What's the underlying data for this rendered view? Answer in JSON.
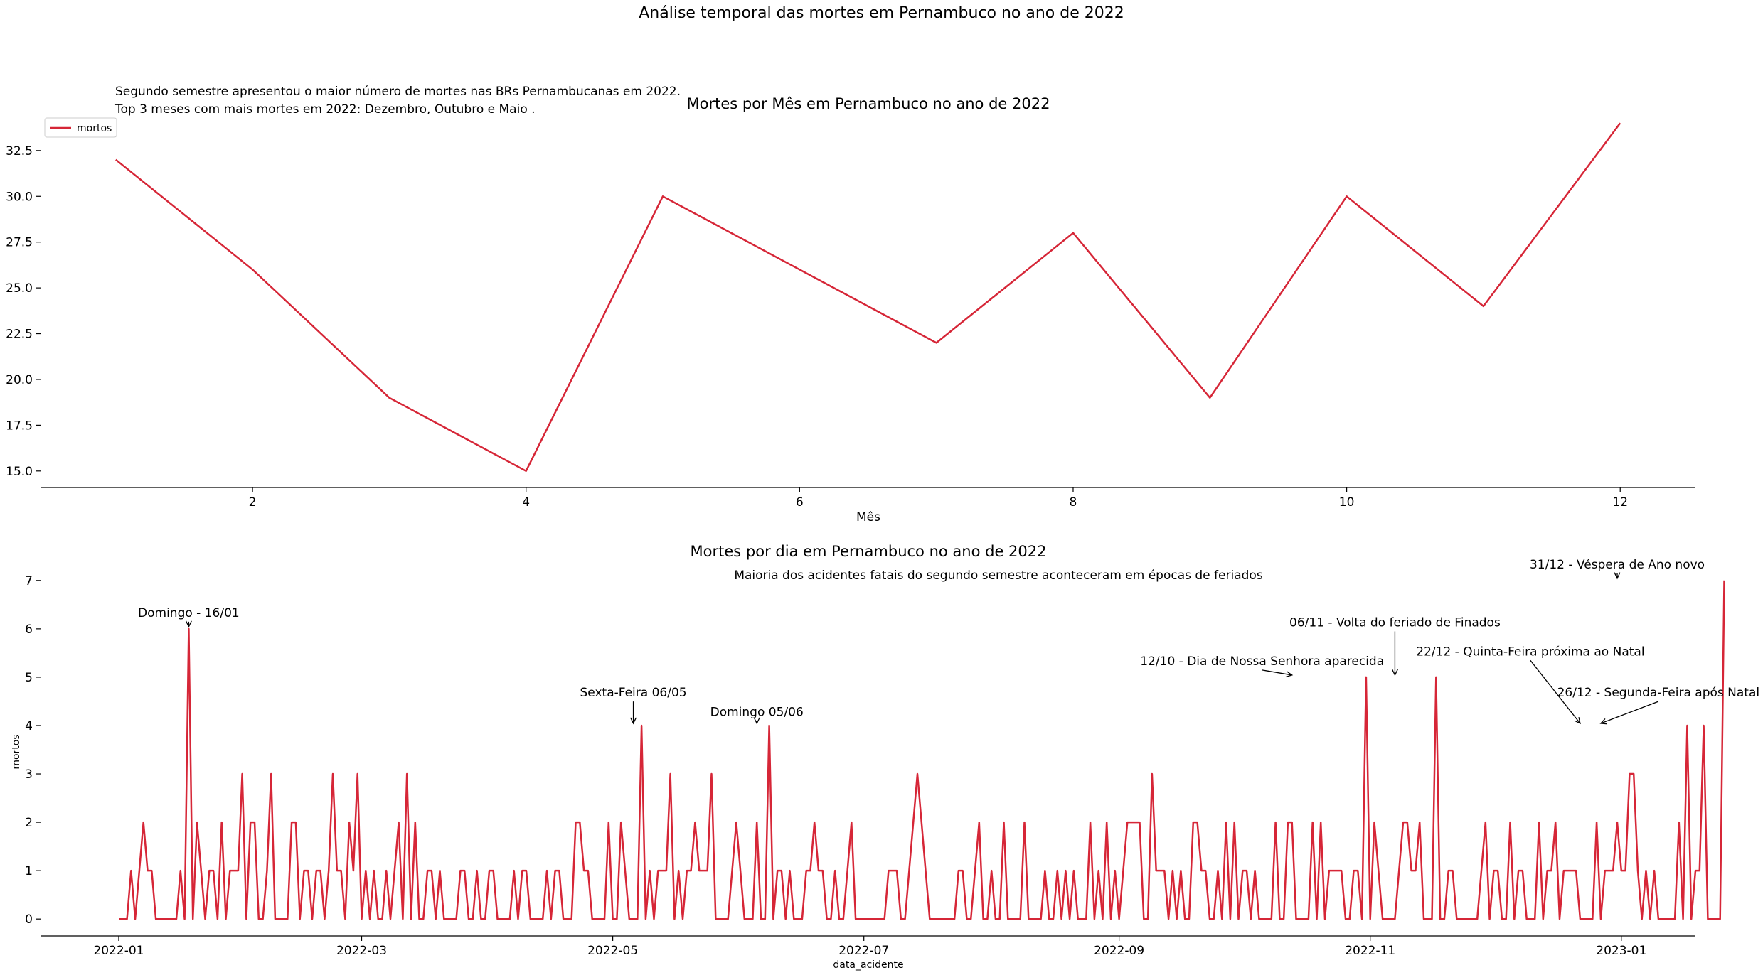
{
  "suptitle": "Análise temporal das mortes em Pernambuco no ano de 2022",
  "colors": {
    "line": "#d62637",
    "axis": "#000000",
    "legend_border": "#cccccc"
  },
  "chart_data": [
    {
      "type": "line",
      "title": "Mortes por Mês em Pernambuco no ano de 2022",
      "xlabel": "Mês",
      "ylabel": "",
      "x": [
        1,
        2,
        3,
        4,
        5,
        6,
        7,
        8,
        9,
        10,
        11,
        12
      ],
      "series": [
        {
          "name": "mortos",
          "values": [
            32,
            26,
            19,
            15,
            30,
            26,
            22,
            28,
            19,
            30,
            24,
            34
          ]
        }
      ],
      "xlim": [
        0.45,
        12.55
      ],
      "ylim": [
        14.1,
        34.9
      ],
      "xticks": [
        2,
        4,
        6,
        8,
        10,
        12
      ],
      "yticks": [
        15.0,
        17.5,
        20.0,
        22.5,
        25.0,
        27.5,
        30.0,
        32.5
      ],
      "legend": "upper left",
      "grid": false,
      "annotations": [
        "Segundo semestre apresentou o maior número de mortes nas BRs Pernambucanas em 2022.",
        "Top 3 meses com mais mortes em 2022: Dezembro, Outubro e Maio ."
      ]
    },
    {
      "type": "line",
      "title": "Mortes por dia em Pernambuco no ano de 2022",
      "subtitle": "Maioria dos acidentes fatais do segundo semestre aconteceram em épocas de feriados",
      "xlabel": "data_acidente",
      "ylabel": "mortos",
      "start_date": "2022-01-01",
      "x_range": [
        "2022-01-01",
        "2022-12-31"
      ],
      "xlim": [
        "2021-12-13",
        "2023-01-19"
      ],
      "ylim": [
        -0.35,
        7.35
      ],
      "xticks": [
        "2022-01",
        "2022-03",
        "2022-05",
        "2022-07",
        "2022-09",
        "2022-11",
        "2023-01"
      ],
      "yticks": [
        0,
        1,
        2,
        3,
        4,
        5,
        6,
        7
      ],
      "grid": false,
      "series": [
        {
          "name": "mortos",
          "values": [
            0,
            0,
            0,
            1,
            0,
            1,
            2,
            1,
            1,
            0,
            0,
            0,
            0,
            0,
            0,
            1,
            0,
            6,
            0,
            2,
            1,
            0,
            1,
            1,
            0,
            2,
            0,
            1,
            1,
            1,
            3,
            0,
            2,
            2,
            0,
            0,
            1,
            3,
            0,
            0,
            0,
            0,
            2,
            2,
            0,
            1,
            1,
            0,
            1,
            1,
            0,
            1,
            3,
            1,
            1,
            0,
            2,
            1,
            3,
            0,
            1,
            0,
            1,
            0,
            0,
            1,
            0,
            1,
            2,
            0,
            3,
            0,
            2,
            0,
            0,
            1,
            1,
            0,
            1,
            0,
            0,
            0,
            0,
            1,
            1,
            0,
            0,
            1,
            0,
            0,
            1,
            1,
            0,
            0,
            0,
            0,
            1,
            0,
            1,
            1,
            0,
            0,
            0,
            0,
            1,
            0,
            1,
            1,
            0,
            0,
            0,
            2,
            2,
            1,
            1,
            0,
            0,
            0,
            0,
            2,
            0,
            0,
            2,
            1,
            0,
            0,
            0,
            4,
            0,
            1,
            0,
            1,
            1,
            1,
            3,
            0,
            1,
            0,
            1,
            1,
            2,
            1,
            1,
            1,
            3,
            0,
            0,
            0,
            0,
            1,
            2,
            1,
            0,
            0,
            0,
            2,
            0,
            0,
            4,
            0,
            1,
            1,
            0,
            1,
            0,
            0,
            0,
            1,
            1,
            2,
            1,
            1,
            0,
            0,
            1,
            0,
            0,
            1,
            2,
            0,
            0,
            0,
            0,
            0,
            0,
            0,
            0,
            1,
            1,
            1,
            0,
            0,
            1,
            2,
            3,
            2,
            1,
            0,
            0,
            0,
            0,
            0,
            0,
            0,
            1,
            1,
            0,
            0,
            1,
            2,
            0,
            0,
            1,
            0,
            0,
            2,
            0,
            0,
            0,
            0,
            2,
            0,
            0,
            0,
            0,
            1,
            0,
            0,
            1,
            0,
            1,
            0,
            1,
            0,
            0,
            0,
            2,
            0,
            1,
            0,
            2,
            0,
            1,
            0,
            1,
            2,
            2,
            2,
            2,
            0,
            0,
            3,
            1,
            1,
            1,
            0,
            1,
            0,
            1,
            0,
            0,
            2,
            2,
            1,
            1,
            0,
            0,
            1,
            0,
            2,
            0,
            2,
            0,
            1,
            1,
            0,
            1,
            0,
            0,
            0,
            0,
            2,
            0,
            0,
            2,
            2,
            0,
            0,
            0,
            0,
            2,
            0,
            2,
            0,
            1,
            1,
            1,
            1,
            0,
            0,
            1,
            1,
            0,
            5,
            0,
            2,
            1,
            0,
            0,
            0,
            0,
            1,
            2,
            2,
            1,
            1,
            2,
            0,
            0,
            0,
            5,
            0,
            0,
            1,
            1,
            0,
            0,
            0,
            0,
            0,
            0,
            1,
            2,
            0,
            1,
            1,
            0,
            0,
            2,
            0,
            1,
            1,
            0,
            0,
            0,
            2,
            0,
            1,
            1,
            2,
            0,
            1,
            1,
            1,
            1,
            0,
            0,
            0,
            0,
            2,
            0,
            1,
            1,
            1,
            2,
            1,
            1,
            3,
            3,
            1,
            0,
            1,
            0,
            1,
            0,
            0,
            0,
            0,
            0,
            2,
            0,
            4,
            0,
            1,
            1,
            4,
            0,
            0,
            0,
            0,
            7
          ]
        }
      ],
      "annotations": [
        {
          "label": "Domingo - 16/01",
          "date": "2022-01-18",
          "value": 6,
          "text_y": 6.25
        },
        {
          "label": "Sexta-Feira 06/05",
          "date": "2022-05-06",
          "value": 4,
          "text_y": 4.6
        },
        {
          "label": "Domingo 05/06",
          "date": "2022-06-05",
          "value": 4,
          "text_y": 4.2
        },
        {
          "label": "12/10 - Dia de Nossa Senhora aparecida",
          "date": "2022-10-13",
          "value": 5,
          "text_y": 5.25
        },
        {
          "label": "06/11 - Volta do feriado de Finados",
          "date": "2022-11-07",
          "value": 5,
          "text_y": 6.05
        },
        {
          "label": "22/12 - Quinta-Feira próxima ao Natal",
          "date": "2022-12-22",
          "value": 4,
          "text_y": 5.45
        },
        {
          "label": "26/12 - Segunda-Feira após Natal",
          "date": "2022-12-27",
          "value": 4,
          "text_y": 4.6
        },
        {
          "label": "31/12 - Véspera de Ano novo",
          "date": "2022-12-31",
          "value": 7,
          "text_y": 7.25
        }
      ]
    }
  ]
}
